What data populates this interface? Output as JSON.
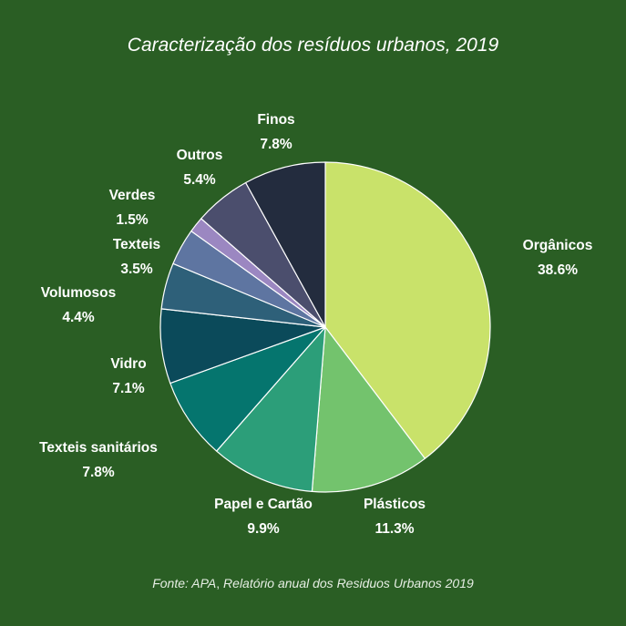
{
  "title": "Caracterização dos resíduos urbanos, 2019",
  "source": {
    "prefix": "Fonte: APA",
    "separator": ",",
    "rest": " Relatório anual dos Residuos Urbanos 2019"
  },
  "colors": {
    "background": "#2a5e24",
    "text": "#ffffff"
  },
  "chart_data": {
    "type": "pie",
    "unit": "%",
    "start": "12 o'clock, clockwise",
    "slices": [
      {
        "label": "Orgânicos",
        "value": 38.6,
        "display": "38.6%",
        "color": "#c9e26a"
      },
      {
        "label": "Plásticos",
        "value": 11.3,
        "display": "11.3%",
        "color": "#73c36d"
      },
      {
        "label": "Papel e Cartão",
        "value": 9.9,
        "display": "9.9%",
        "color": "#2c9e79"
      },
      {
        "label": "Texteis sanitários",
        "value": 7.8,
        "display": "7.8%",
        "color": "#05756e"
      },
      {
        "label": "Vidro",
        "value": 7.1,
        "display": "7.1%",
        "color": "#0b4a5a"
      },
      {
        "label": "Volumosos",
        "value": 4.4,
        "display": "4.4%",
        "color": "#2e6079"
      },
      {
        "label": "Texteis",
        "value": 3.5,
        "display": "3.5%",
        "color": "#5e75a1"
      },
      {
        "label": "Verdes",
        "value": 1.5,
        "display": "1.5%",
        "color": "#9b87c1"
      },
      {
        "label": "Outros",
        "value": 5.4,
        "display": "5.4%",
        "color": "#4b4e6d"
      },
      {
        "label": "Finos",
        "value": 7.8,
        "display": "7.8%",
        "color": "#232c3e"
      }
    ]
  }
}
